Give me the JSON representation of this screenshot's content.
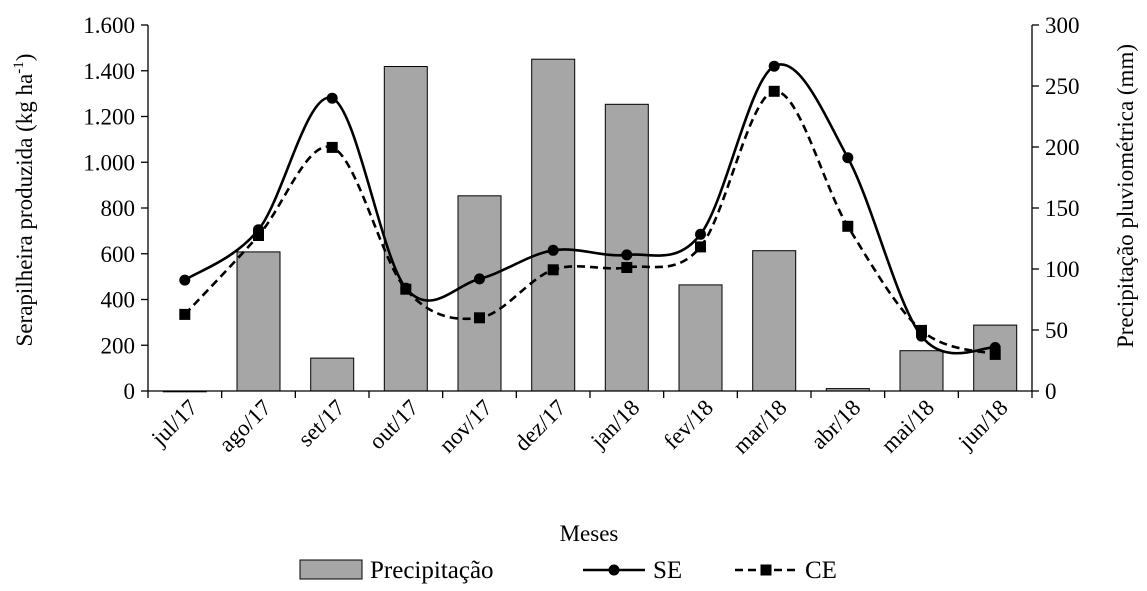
{
  "chart_data": {
    "type": "bar+line",
    "categories": [
      "jul/17",
      "ago/17",
      "set/17",
      "out/17",
      "nov/17",
      "dez/17",
      "jan/18",
      "fev/18",
      "mar/18",
      "abr/18",
      "mai/18",
      "jun/18"
    ],
    "xlabel": "Meses",
    "ylabel_left": "Serapilheira produzida (kg ha",
    "ylabel_left_sup": "-1",
    "ylabel_left_close": ")",
    "ylabel_right": "Precipitação pluviométrica (mm)",
    "ylim_left": [
      0,
      1600
    ],
    "ylim_right": [
      0,
      300
    ],
    "yticks_left": [
      0,
      200,
      400,
      600,
      800,
      1000,
      1200,
      1400,
      1600
    ],
    "yticks_left_labels": [
      "0",
      "200",
      "400",
      "600",
      "800",
      "1.000",
      "1.200",
      "1.400",
      "1.600"
    ],
    "yticks_right": [
      0,
      50,
      100,
      150,
      200,
      250,
      300
    ],
    "yticks_right_labels": [
      "0",
      "50",
      "100",
      "150",
      "200",
      "250",
      "300"
    ],
    "grid": false,
    "legend_position": "bottom",
    "series": [
      {
        "name": "Precipitação",
        "kind": "bar",
        "axis": "right",
        "color": "#a6a6a6",
        "values": [
          0,
          114,
          27,
          266,
          160,
          272,
          235,
          87,
          115,
          2,
          33,
          54
        ]
      },
      {
        "name": "SE",
        "kind": "line",
        "axis": "left",
        "marker": "circle",
        "dash": "solid",
        "color": "#000000",
        "values": [
          485,
          705,
          1280,
          450,
          490,
          615,
          595,
          685,
          1420,
          1020,
          240,
          190
        ]
      },
      {
        "name": "CE",
        "kind": "line",
        "axis": "left",
        "marker": "square",
        "dash": "dashed",
        "color": "#000000",
        "values": [
          335,
          680,
          1065,
          445,
          320,
          530,
          540,
          630,
          1310,
          720,
          265,
          160
        ]
      }
    ]
  }
}
